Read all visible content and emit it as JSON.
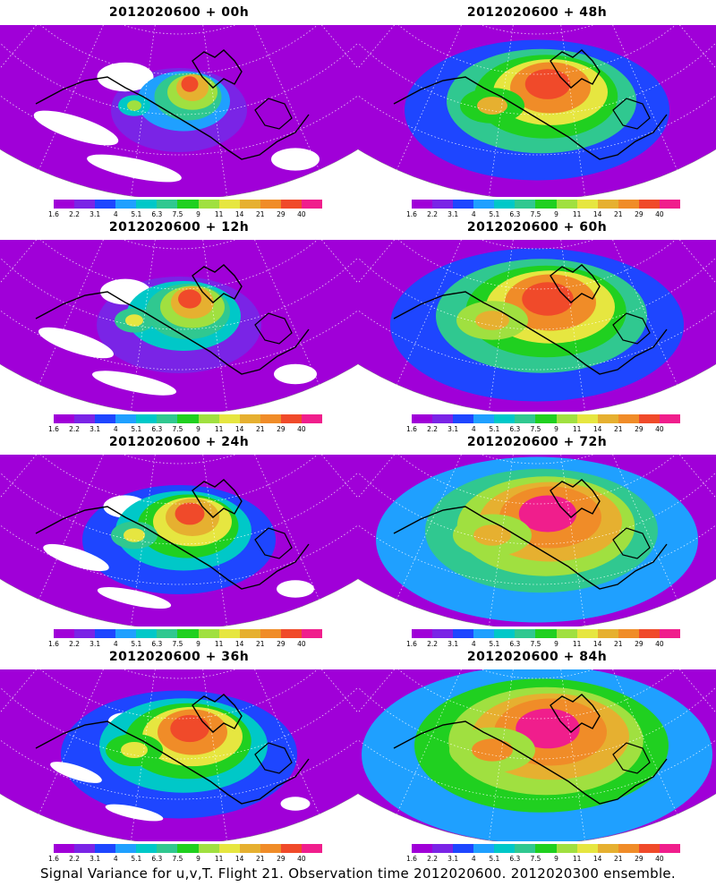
{
  "caption": "Signal Variance for u,v,T. Flight 21. Observation time 2012020600. 2012020300 ensemble.",
  "colorbar": {
    "labels": [
      "1.6",
      "2.2",
      "3.1",
      "4",
      "5.1",
      "6.3",
      "7.5",
      "9",
      "11",
      "14",
      "21",
      "29",
      "40"
    ],
    "colors": [
      "#a000d8",
      "#7a24e6",
      "#1e46ff",
      "#1fa0ff",
      "#00c8c8",
      "#30c890",
      "#20d020",
      "#a0e040",
      "#e6e640",
      "#e6b030",
      "#f08c28",
      "#f04a2a",
      "#f01e8c"
    ],
    "below_color": "#ffffff"
  },
  "panels": [
    {
      "title": "2012020600 + 00h",
      "intensity": 0.1
    },
    {
      "title": "2012020600 + 48h",
      "intensity": 0.55
    },
    {
      "title": "2012020600 + 12h",
      "intensity": 0.2
    },
    {
      "title": "2012020600 + 60h",
      "intensity": 0.65
    },
    {
      "title": "2012020600 + 24h",
      "intensity": 0.3
    },
    {
      "title": "2012020600 + 72h",
      "intensity": 0.75
    },
    {
      "title": "2012020600 + 36h",
      "intensity": 0.45
    },
    {
      "title": "2012020600 + 84h",
      "intensity": 0.85
    }
  ]
}
